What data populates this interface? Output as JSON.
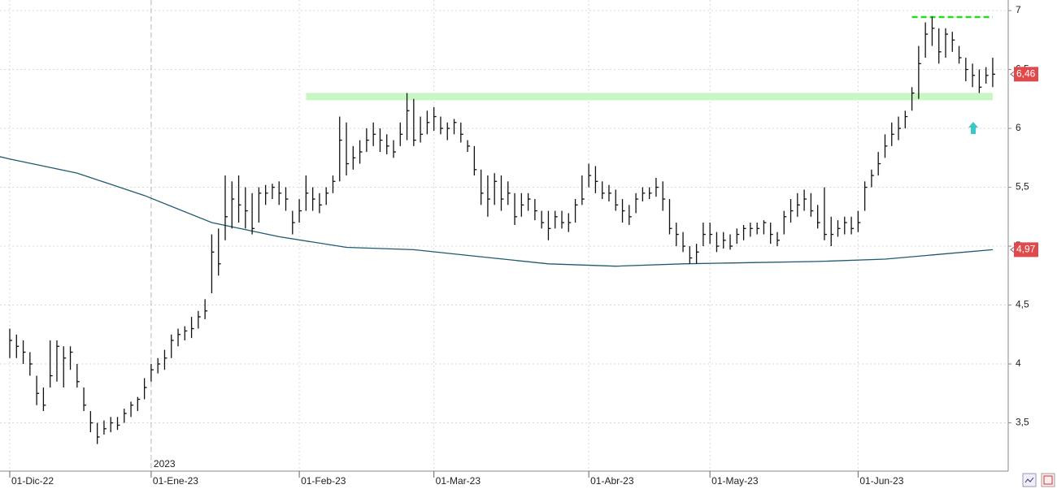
{
  "chart_data": {
    "type": "ohlc",
    "ylim": [
      3.09,
      7.09
    ],
    "yticks": [
      {
        "value": 3.5,
        "label": "3,5"
      },
      4,
      {
        "value": 4.5,
        "label": "4,5"
      },
      5,
      {
        "value": 5.5,
        "label": "5,5"
      },
      6,
      {
        "value": 6.5,
        "label": "6,5"
      },
      7
    ],
    "xlim": [
      -1.45,
      148.3
    ],
    "xticks": [
      {
        "value": 0,
        "label": "01-Dic-22"
      },
      {
        "value": 21,
        "label": "01-Ene-23"
      },
      {
        "value": 43,
        "label": "01-Feb-23"
      },
      {
        "value": 63,
        "label": "01-Mar-23"
      },
      {
        "value": 86,
        "label": "01-Abr-23"
      },
      {
        "value": 104,
        "label": "01-May-23"
      },
      {
        "value": 126,
        "label": "01-Jun-23"
      }
    ],
    "year_marker": {
      "value": 21,
      "label": "2023"
    },
    "grid": true,
    "color": "#111111",
    "high": [
      4.3,
      4.25,
      4.2,
      4.1,
      3.9,
      3.8,
      4.2,
      4.2,
      4.15,
      4.15,
      4.0,
      3.8,
      3.6,
      3.5,
      3.52,
      3.55,
      3.55,
      3.62,
      3.68,
      3.72,
      3.88,
      4.0,
      4.05,
      4.12,
      4.25,
      4.3,
      4.32,
      4.4,
      4.45,
      4.55,
      5.1,
      5.15,
      5.6,
      5.55,
      5.6,
      5.5,
      5.45,
      5.5,
      5.52,
      5.53,
      5.55,
      5.5,
      5.3,
      5.4,
      5.6,
      5.5,
      5.45,
      5.5,
      5.6,
      6.1,
      6.05,
      5.85,
      5.9,
      6.0,
      6.05,
      6.0,
      5.95,
      5.9,
      6.05,
      6.3,
      6.25,
      6.1,
      6.15,
      6.18,
      6.1,
      6.05,
      6.08,
      6.05,
      5.9,
      5.85,
      5.65,
      5.6,
      5.62,
      5.6,
      5.55,
      5.45,
      5.45,
      5.45,
      5.4,
      5.3,
      5.3,
      5.3,
      5.3,
      5.28,
      5.4,
      5.6,
      5.7,
      5.68,
      5.55,
      5.52,
      5.48,
      5.4,
      5.35,
      5.45,
      5.5,
      5.5,
      5.58,
      5.55,
      5.4,
      5.2,
      5.12,
      5.0,
      5.02,
      5.2,
      5.2,
      5.12,
      5.12,
      5.1,
      5.15,
      5.18,
      5.2,
      5.2,
      5.22,
      5.2,
      5.12,
      5.3,
      5.4,
      5.45,
      5.48,
      5.45,
      5.35,
      5.5,
      5.25,
      5.22,
      5.25,
      5.25,
      5.3,
      5.55,
      5.65,
      5.8,
      5.95,
      6.05,
      6.1,
      6.15,
      6.35,
      6.7,
      6.9,
      6.95,
      6.85,
      6.85,
      6.82,
      6.7,
      6.6,
      6.55,
      6.5,
      6.52,
      6.6
    ],
    "low": [
      4.05,
      4.05,
      4.0,
      3.9,
      3.65,
      3.6,
      3.8,
      3.85,
      3.8,
      3.95,
      3.8,
      3.6,
      3.42,
      3.32,
      3.4,
      3.42,
      3.44,
      3.5,
      3.55,
      3.6,
      3.7,
      3.85,
      3.92,
      3.95,
      4.05,
      4.15,
      4.2,
      4.22,
      4.3,
      4.38,
      4.6,
      4.75,
      5.05,
      5.15,
      5.2,
      5.15,
      5.1,
      5.2,
      5.35,
      5.4,
      5.35,
      5.3,
      5.1,
      5.2,
      5.3,
      5.3,
      5.28,
      5.35,
      5.45,
      5.55,
      5.6,
      5.65,
      5.7,
      5.8,
      5.85,
      5.8,
      5.78,
      5.75,
      5.85,
      5.9,
      5.85,
      5.88,
      5.95,
      5.98,
      5.95,
      5.9,
      5.95,
      5.88,
      5.8,
      5.6,
      5.35,
      5.25,
      5.35,
      5.3,
      5.35,
      5.18,
      5.25,
      5.3,
      5.22,
      5.15,
      5.05,
      5.15,
      5.15,
      5.12,
      5.2,
      5.35,
      5.5,
      5.45,
      5.4,
      5.38,
      5.3,
      5.2,
      5.18,
      5.28,
      5.38,
      5.4,
      5.42,
      5.3,
      5.1,
      5.0,
      4.95,
      4.85,
      4.85,
      5.0,
      5.02,
      4.95,
      4.98,
      4.97,
      5.02,
      5.05,
      5.08,
      5.1,
      5.1,
      5.02,
      5.0,
      5.1,
      5.2,
      5.25,
      5.3,
      5.25,
      5.15,
      5.05,
      5.0,
      5.08,
      5.1,
      5.1,
      5.12,
      5.3,
      5.5,
      5.6,
      5.75,
      5.85,
      5.9,
      6.0,
      6.15,
      6.25,
      6.6,
      6.7,
      6.55,
      6.6,
      6.65,
      6.55,
      6.4,
      6.35,
      6.3,
      6.38,
      6.35
    ],
    "close": [
      4.2,
      4.15,
      4.1,
      4.0,
      3.75,
      3.65,
      3.9,
      4.15,
      4.05,
      4.1,
      3.85,
      3.65,
      3.5,
      3.38,
      3.45,
      3.5,
      3.48,
      3.58,
      3.65,
      3.7,
      3.8,
      3.95,
      4.0,
      4.05,
      4.2,
      4.25,
      4.28,
      4.3,
      4.4,
      4.45,
      4.95,
      4.85,
      5.25,
      5.4,
      5.35,
      5.3,
      5.15,
      5.45,
      5.45,
      5.5,
      5.45,
      5.4,
      5.2,
      5.3,
      5.45,
      5.4,
      5.35,
      5.45,
      5.55,
      5.9,
      5.7,
      5.75,
      5.8,
      5.9,
      5.95,
      5.9,
      5.85,
      5.8,
      5.95,
      6.15,
      5.9,
      5.95,
      6.05,
      6.1,
      6.0,
      6.0,
      6.05,
      5.95,
      5.85,
      5.65,
      5.45,
      5.4,
      5.55,
      5.4,
      5.45,
      5.25,
      5.35,
      5.4,
      5.3,
      5.2,
      5.15,
      5.25,
      5.2,
      5.2,
      5.35,
      5.4,
      5.6,
      5.55,
      5.45,
      5.45,
      5.35,
      5.3,
      5.25,
      5.4,
      5.45,
      5.45,
      5.5,
      5.4,
      5.15,
      5.1,
      5.0,
      4.9,
      4.95,
      5.1,
      5.1,
      5.0,
      5.05,
      5.0,
      5.1,
      5.15,
      5.15,
      5.15,
      5.2,
      5.1,
      5.05,
      5.25,
      5.3,
      5.35,
      5.4,
      5.3,
      5.2,
      5.1,
      5.1,
      5.15,
      5.2,
      5.15,
      5.2,
      5.5,
      5.6,
      5.7,
      5.85,
      5.95,
      6.0,
      6.1,
      6.3,
      6.55,
      6.8,
      6.85,
      6.65,
      6.8,
      6.75,
      6.6,
      6.5,
      6.45,
      6.35,
      6.45,
      6.46
    ],
    "moving_average": {
      "color": "#1f5a6e",
      "x": [
        -1.45,
        0,
        10,
        20,
        30,
        40,
        50,
        60,
        70,
        80,
        90,
        100,
        110,
        120,
        130,
        140,
        146
      ],
      "values": [
        5.76,
        5.74,
        5.62,
        5.43,
        5.2,
        5.08,
        4.99,
        4.97,
        4.91,
        4.85,
        4.83,
        4.85,
        4.86,
        4.87,
        4.89,
        4.94,
        4.97
      ]
    },
    "resistance": {
      "value": 6.27,
      "x": [
        44,
        146
      ],
      "color": "#c8f7c4"
    },
    "high_line": {
      "value": 6.945,
      "x": [
        134,
        146
      ],
      "color": "#22dd22"
    },
    "last_price": {
      "value": 6.46,
      "label": "6,46",
      "color": "#e04a4a"
    },
    "ma_last": {
      "value": 4.97,
      "label": "4,97",
      "color": "#e04a4a"
    }
  }
}
